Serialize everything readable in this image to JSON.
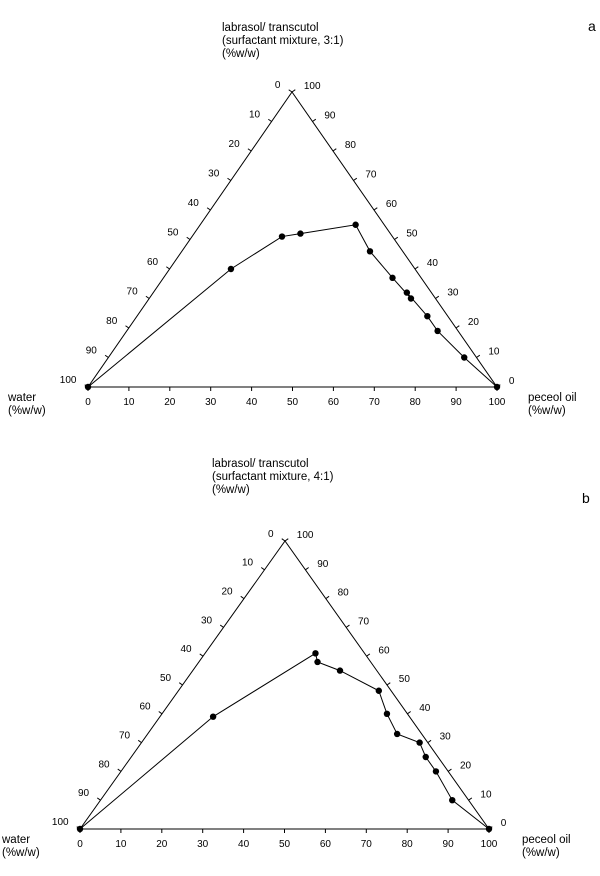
{
  "chart_data": [
    {
      "type": "scatter",
      "subtype": "ternary",
      "panel_label": "a",
      "top_vertex_label": [
        "labrasol/ transcutol",
        "(surfactant mixture, 3:1)",
        "(%w/w)"
      ],
      "left_vertex_label": [
        "water",
        "(%w/w)"
      ],
      "right_vertex_label": [
        "peceol oil",
        "(%w/w)"
      ],
      "bottom_axis_ticks": [
        "0",
        "10",
        "20",
        "30",
        "40",
        "50",
        "60",
        "70",
        "80",
        "90",
        "100"
      ],
      "left_axis_ticks": [
        "0",
        "10",
        "20",
        "30",
        "40",
        "50",
        "60",
        "70",
        "80",
        "90",
        "100"
      ],
      "right_axis_ticks": [
        "100",
        "90",
        "80",
        "70",
        "60",
        "50",
        "40",
        "30",
        "20",
        "10",
        "0"
      ],
      "points": [
        {
          "oil": 0,
          "surfactant": 0
        },
        {
          "oil": 15,
          "surfactant": 40
        },
        {
          "oil": 22,
          "surfactant": 51
        },
        {
          "oil": 26,
          "surfactant": 52
        },
        {
          "oil": 38,
          "surfactant": 55
        },
        {
          "oil": 46,
          "surfactant": 46
        },
        {
          "oil": 56,
          "surfactant": 37
        },
        {
          "oil": 64,
          "surfactant": 30
        },
        {
          "oil": 62,
          "surfactant": 32
        },
        {
          "oil": 71,
          "surfactant": 24
        },
        {
          "oil": 76,
          "surfactant": 19
        },
        {
          "oil": 87,
          "surfactant": 10
        },
        {
          "oil": 100,
          "surfactant": 0
        }
      ]
    },
    {
      "type": "scatter",
      "subtype": "ternary",
      "panel_label": "b",
      "top_vertex_label": [
        "labrasol/ transcutol",
        "(surfactant mixture, 4:1)",
        "(%w/w)"
      ],
      "left_vertex_label": [
        "water",
        "(%w/w)"
      ],
      "right_vertex_label": [
        "peceol oil",
        "(%w/w)"
      ],
      "bottom_axis_ticks": [
        "0",
        "10",
        "20",
        "30",
        "40",
        "50",
        "60",
        "70",
        "80",
        "90",
        "100"
      ],
      "left_axis_ticks": [
        "0",
        "10",
        "20",
        "30",
        "40",
        "50",
        "60",
        "70",
        "80",
        "90",
        "100"
      ],
      "right_axis_ticks": [
        "100",
        "90",
        "80",
        "70",
        "60",
        "50",
        "40",
        "30",
        "20",
        "10",
        "0"
      ],
      "points": [
        {
          "oil": 0,
          "surfactant": 0
        },
        {
          "oil": 13,
          "surfactant": 39
        },
        {
          "oil": 27,
          "surfactant": 61
        },
        {
          "oil": 29,
          "surfactant": 58
        },
        {
          "oil": 36,
          "surfactant": 55
        },
        {
          "oil": 49,
          "surfactant": 48
        },
        {
          "oil": 55,
          "surfactant": 40
        },
        {
          "oil": 61,
          "surfactant": 33
        },
        {
          "oil": 68,
          "surfactant": 30
        },
        {
          "oil": 72,
          "surfactant": 25
        },
        {
          "oil": 77,
          "surfactant": 20
        },
        {
          "oil": 86,
          "surfactant": 10
        },
        {
          "oil": 100,
          "surfactant": 0
        }
      ]
    }
  ]
}
